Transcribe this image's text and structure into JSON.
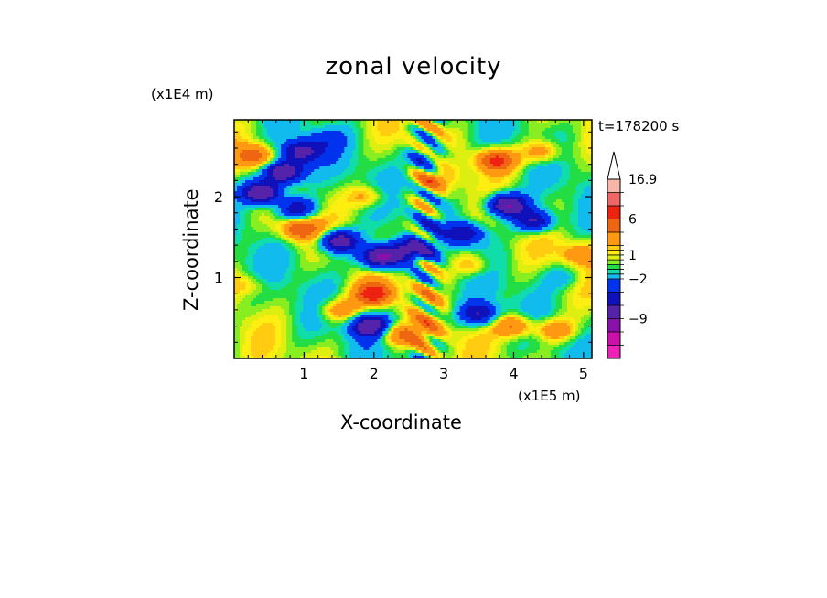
{
  "chart_data": {
    "type": "heatmap",
    "title": "zonal velocity",
    "xlabel": "X-coordinate",
    "ylabel": "Z-coordinate",
    "x_unit": "(x1E5 m)",
    "y_unit": "(x1E4 m)",
    "time_label": "t=178200 s",
    "xlim": [
      0,
      5.12
    ],
    "ylim": [
      0,
      2.95
    ],
    "x_ticks": [
      1,
      2,
      3,
      4,
      5
    ],
    "y_ticks": [
      1,
      2
    ],
    "colorbar": {
      "levels": [
        -14,
        -11,
        -9,
        -6,
        -4,
        -2,
        -1,
        -0.5,
        0,
        0.5,
        1,
        1.5,
        2,
        4,
        6,
        9,
        12,
        16.9
      ],
      "labels": [
        {
          "value": 16.9,
          "text": "16.9"
        },
        {
          "value": 6,
          "text": "6"
        },
        {
          "value": 1,
          "text": "1"
        },
        {
          "value": -2,
          "text": "−2"
        },
        {
          "value": -9,
          "text": "−9"
        }
      ],
      "colors": [
        "#ee22bb",
        "#cc11aa",
        "#8811aa",
        "#5522aa",
        "#1111bb",
        "#0033ee",
        "#11bbee",
        "#11ddaa",
        "#22dd44",
        "#88ee22",
        "#ddee11",
        "#ffee11",
        "#ffcc11",
        "#ff9911",
        "#ee6611",
        "#ee2211",
        "#ee6666",
        "#f7b7a8"
      ],
      "extend": "max"
    },
    "field_features": [
      {
        "x": 0.95,
        "z": 2.55,
        "u": -7
      },
      {
        "x": 0.7,
        "z": 2.3,
        "u": -10
      },
      {
        "x": 0.4,
        "z": 2.05,
        "u": -10
      },
      {
        "x": 0.9,
        "z": 1.85,
        "u": -6
      },
      {
        "x": 0.95,
        "z": 1.6,
        "u": 6
      },
      {
        "x": 1.5,
        "z": 1.45,
        "u": -9
      },
      {
        "x": 2.1,
        "z": 1.25,
        "u": -11
      },
      {
        "x": 2.5,
        "z": 1.35,
        "u": -6
      },
      {
        "x": 2.0,
        "z": 0.8,
        "u": 7
      },
      {
        "x": 1.5,
        "z": 0.6,
        "u": 4
      },
      {
        "x": 1.95,
        "z": 0.4,
        "u": -8
      },
      {
        "x": 2.3,
        "z": 0.3,
        "u": 4
      },
      {
        "x": 2.7,
        "z": 0.3,
        "u": 3
      },
      {
        "x": 3.5,
        "z": 0.55,
        "u": -6
      },
      {
        "x": 4.0,
        "z": 0.4,
        "u": 5
      },
      {
        "x": 4.6,
        "z": 0.35,
        "u": 4
      },
      {
        "x": 3.4,
        "z": 1.15,
        "u": 3
      },
      {
        "x": 3.3,
        "z": 1.55,
        "u": -6
      },
      {
        "x": 3.9,
        "z": 1.9,
        "u": -10
      },
      {
        "x": 4.3,
        "z": 1.7,
        "u": -7
      },
      {
        "x": 3.75,
        "z": 2.45,
        "u": 7
      },
      {
        "x": 4.4,
        "z": 2.55,
        "u": 4
      },
      {
        "x": 2.9,
        "z": 2.2,
        "u": 2
      },
      {
        "x": 1.9,
        "z": 2.0,
        "u": 3
      },
      {
        "x": 1.3,
        "z": 2.7,
        "u": -2
      },
      {
        "x": 2.8,
        "z": 2.5,
        "u": -4
      },
      {
        "x": 4.95,
        "z": 1.3,
        "u": 3
      },
      {
        "x": 4.7,
        "z": 1.0,
        "u": -2
      },
      {
        "x": 0.2,
        "z": 0.9,
        "u": 2
      },
      {
        "x": 0.3,
        "z": 2.5,
        "u": 5
      }
    ]
  }
}
